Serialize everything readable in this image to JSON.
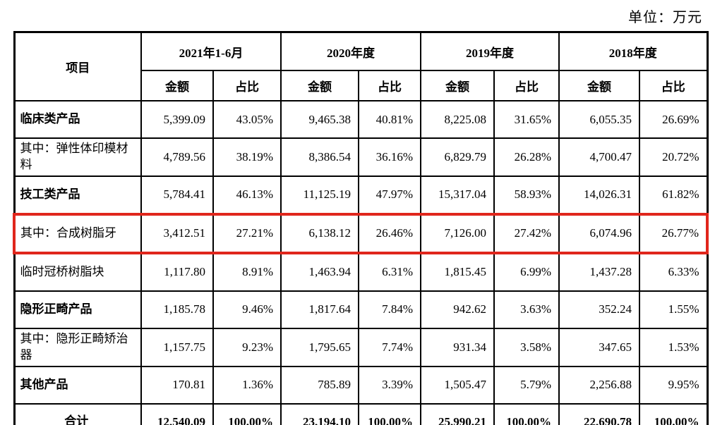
{
  "unit_label": "单位：万元",
  "colors": {
    "highlight_border": "#e0261c",
    "table_border": "#000000",
    "text": "#000000",
    "background": "#ffffff"
  },
  "table": {
    "item_header": "项目",
    "period_headers": [
      "2021年1-6月",
      "2020年度",
      "2019年度",
      "2018年度"
    ],
    "sub_headers": {
      "amount": "金额",
      "ratio": "占比"
    },
    "rows": [
      {
        "label": "临床类产品",
        "bold": true,
        "highlighted": false,
        "total": false,
        "values": [
          "5,399.09",
          "43.05%",
          "9,465.38",
          "40.81%",
          "8,225.08",
          "31.65%",
          "6,055.35",
          "26.69%"
        ]
      },
      {
        "label": "其中：弹性体印模材料",
        "bold": false,
        "highlighted": false,
        "total": false,
        "values": [
          "4,789.56",
          "38.19%",
          "8,386.54",
          "36.16%",
          "6,829.79",
          "26.28%",
          "4,700.47",
          "20.72%"
        ]
      },
      {
        "label": "技工类产品",
        "bold": true,
        "highlighted": false,
        "total": false,
        "values": [
          "5,784.41",
          "46.13%",
          "11,125.19",
          "47.97%",
          "15,317.04",
          "58.93%",
          "14,026.31",
          "61.82%"
        ]
      },
      {
        "label": "其中：合成树脂牙",
        "bold": false,
        "highlighted": true,
        "total": false,
        "values": [
          "3,412.51",
          "27.21%",
          "6,138.12",
          "26.46%",
          "7,126.00",
          "27.42%",
          "6,074.96",
          "26.77%"
        ]
      },
      {
        "label": "临时冠桥树脂块",
        "bold": false,
        "highlighted": false,
        "total": false,
        "values": [
          "1,117.80",
          "8.91%",
          "1,463.94",
          "6.31%",
          "1,815.45",
          "6.99%",
          "1,437.28",
          "6.33%"
        ]
      },
      {
        "label": "隐形正畸产品",
        "bold": true,
        "highlighted": false,
        "total": false,
        "values": [
          "1,185.78",
          "9.46%",
          "1,817.64",
          "7.84%",
          "942.62",
          "3.63%",
          "352.24",
          "1.55%"
        ]
      },
      {
        "label": "其中：隐形正畸矫治器",
        "bold": false,
        "highlighted": false,
        "total": false,
        "values": [
          "1,157.75",
          "9.23%",
          "1,795.65",
          "7.74%",
          "931.34",
          "3.58%",
          "347.65",
          "1.53%"
        ]
      },
      {
        "label": "其他产品",
        "bold": true,
        "highlighted": false,
        "total": false,
        "values": [
          "170.81",
          "1.36%",
          "785.89",
          "3.39%",
          "1,505.47",
          "5.79%",
          "2,256.88",
          "9.95%"
        ]
      },
      {
        "label": "合计",
        "bold": true,
        "highlighted": false,
        "total": true,
        "values": [
          "12,540.09",
          "100.00%",
          "23,194.10",
          "100.00%",
          "25,990.21",
          "100.00%",
          "22,690.78",
          "100.00%"
        ]
      }
    ]
  }
}
